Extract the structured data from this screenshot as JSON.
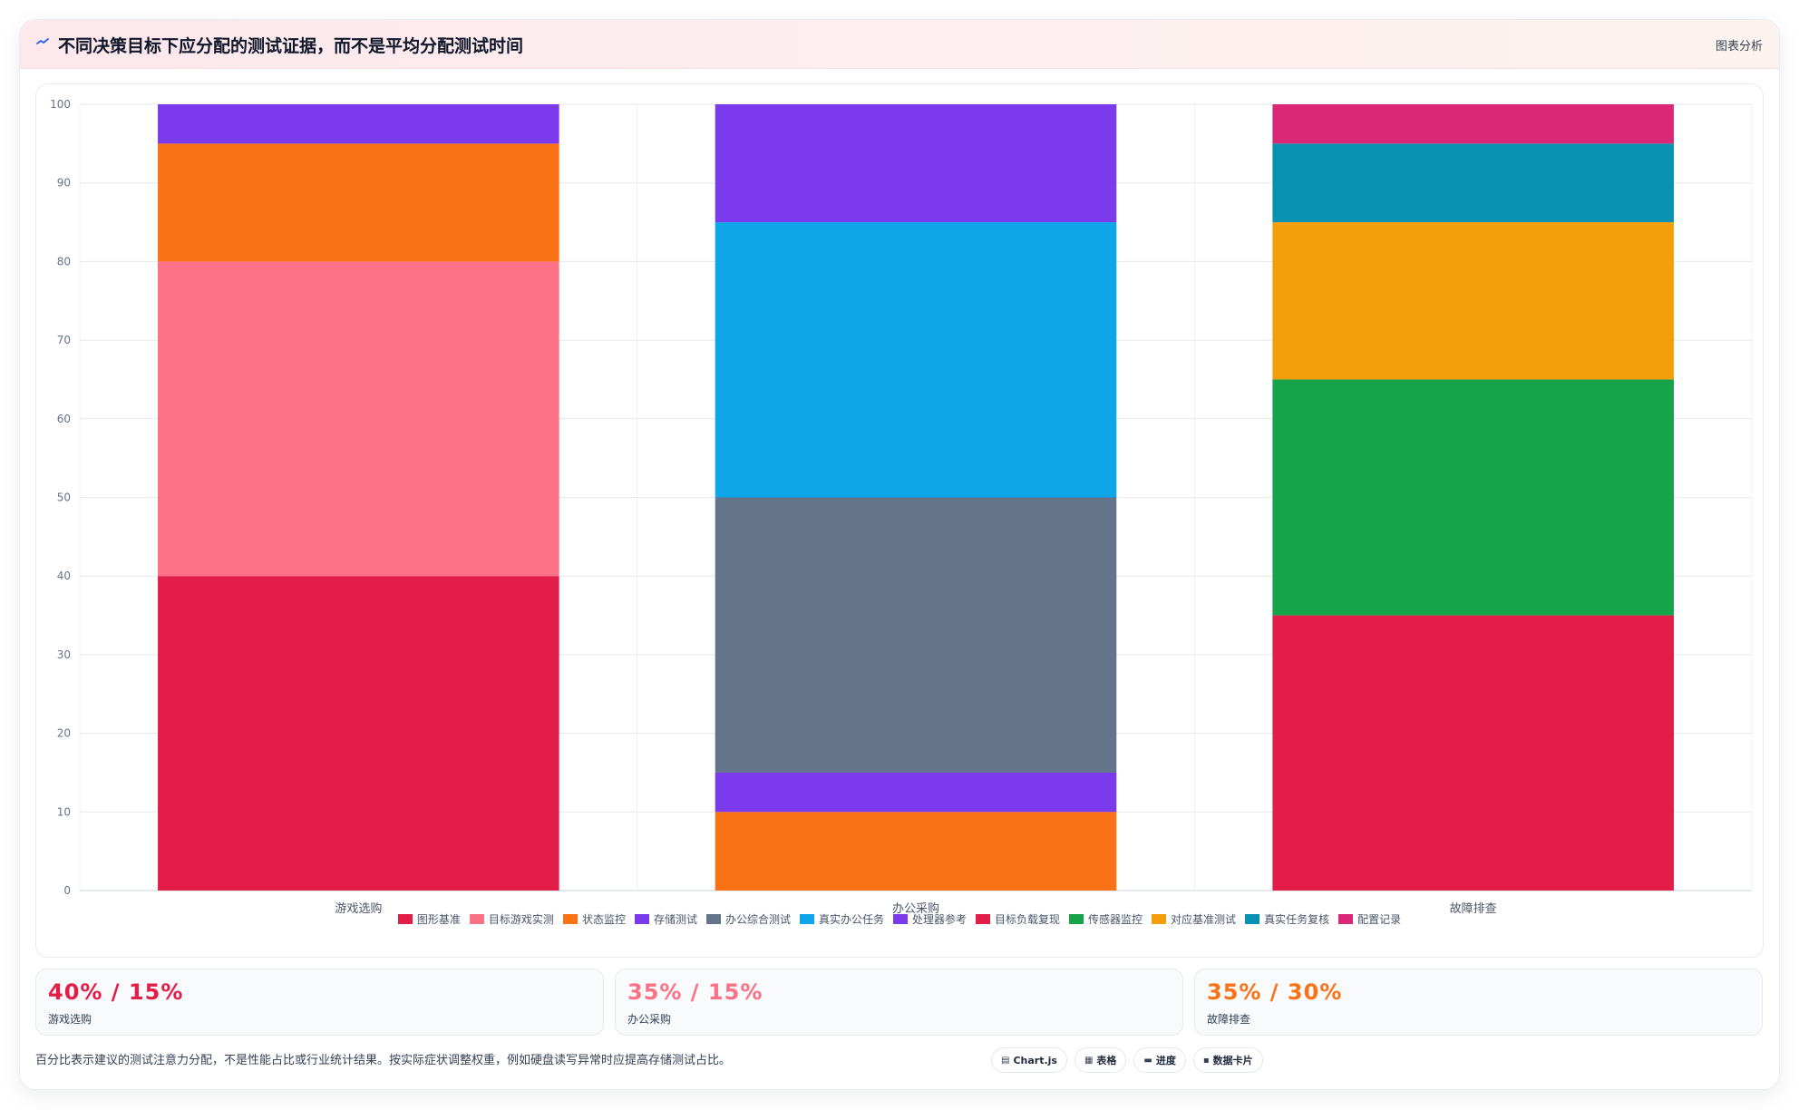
{
  "header": {
    "title": "不同决策目标下应分配的测试证据，而不是平均分配测试时间",
    "action_label": "图表分析"
  },
  "chart_data": {
    "type": "bar",
    "stacked": true,
    "categories": [
      "游戏选购",
      "办公采购",
      "故障排查"
    ],
    "ylim": [
      0,
      100
    ],
    "yticks": [
      0,
      10,
      20,
      30,
      40,
      50,
      60,
      70,
      80,
      90,
      100
    ],
    "grid": true,
    "legend_position": "bottom",
    "series": [
      {
        "name": "图形基准",
        "color": "#e11d48",
        "values": [
          40,
          0,
          0
        ]
      },
      {
        "name": "目标游戏实测",
        "color": "#fb7185",
        "values": [
          40,
          0,
          0
        ]
      },
      {
        "name": "状态监控",
        "color": "#f97316",
        "values": [
          15,
          0,
          0
        ]
      },
      {
        "name": "存储测试",
        "color": "#7c3aed",
        "values": [
          5,
          0,
          0
        ]
      },
      {
        "name": "存储测试",
        "color": "#f97316",
        "values": [
          0,
          10,
          0
        ],
        "legend": false
      },
      {
        "name": "办公综合测试",
        "color": "#7c3aed",
        "values": [
          0,
          5,
          0
        ],
        "legend": false
      },
      {
        "name": "办公综合测试",
        "color": "#64748b",
        "values": [
          0,
          35,
          0
        ]
      },
      {
        "name": "真实办公任务",
        "color": "#0ea5e9",
        "values": [
          0,
          35,
          0
        ]
      },
      {
        "name": "处理器参考",
        "color": "#7c3aed",
        "values": [
          0,
          15,
          0
        ]
      },
      {
        "name": "目标负载复现",
        "color": "#e11d48",
        "values": [
          0,
          0,
          35
        ]
      },
      {
        "name": "传感器监控",
        "color": "#16a34a",
        "values": [
          0,
          0,
          30
        ]
      },
      {
        "name": "对应基准测试",
        "color": "#f59e0b",
        "values": [
          0,
          0,
          20
        ]
      },
      {
        "name": "真实任务复核",
        "color": "#0891b2",
        "values": [
          0,
          0,
          10
        ]
      },
      {
        "name": "配置记录",
        "color": "#db2777",
        "values": [
          0,
          0,
          5
        ]
      }
    ]
  },
  "legend": [
    {
      "name": "图形基准",
      "color": "#e11d48"
    },
    {
      "name": "目标游戏实测",
      "color": "#fb7185"
    },
    {
      "name": "状态监控",
      "color": "#f97316"
    },
    {
      "name": "存储测试",
      "color": "#7c3aed"
    },
    {
      "name": "办公综合测试",
      "color": "#64748b"
    },
    {
      "name": "真实办公任务",
      "color": "#0ea5e9"
    },
    {
      "name": "处理器参考",
      "color": "#7c3aed"
    },
    {
      "name": "目标负载复现",
      "color": "#e11d48"
    },
    {
      "name": "传感器监控",
      "color": "#16a34a"
    },
    {
      "name": "对应基准测试",
      "color": "#f59e0b"
    },
    {
      "name": "真实任务复核",
      "color": "#0891b2"
    },
    {
      "name": "配置记录",
      "color": "#db2777"
    }
  ],
  "stats": [
    {
      "value": "40% / 15%",
      "label": "游戏选购",
      "color": "#e11d48"
    },
    {
      "value": "35% / 15%",
      "label": "办公采购",
      "color": "#fb7185"
    },
    {
      "value": "35% / 30%",
      "label": "故障排查",
      "color": "#f97316"
    }
  ],
  "footnote": "百分比表示建议的测试注意力分配，不是性能占比或行业统计结果。按实际症状调整权重，例如硬盘读写异常时应提高存储测试占比。",
  "chips": [
    {
      "icon": "▤",
      "label": "Chart.js"
    },
    {
      "icon": "▦",
      "label": "表格"
    },
    {
      "icon": "▬",
      "label": "进度"
    },
    {
      "icon": "▪",
      "label": "数据卡片"
    }
  ]
}
